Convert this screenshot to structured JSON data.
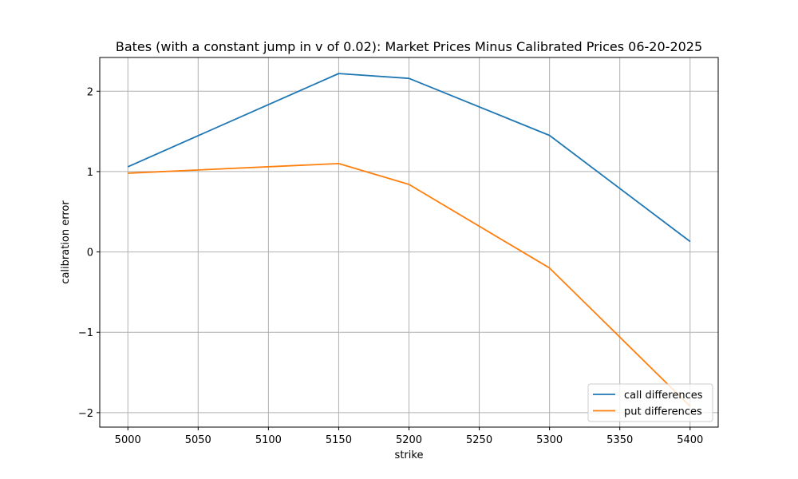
{
  "chart_data": {
    "type": "line",
    "title": "Bates (with a constant jump in v of 0.02): Market Prices Minus Calibrated Prices 06-20-2025",
    "xlabel": "strike",
    "ylabel": "calibration error",
    "x": [
      5000,
      5150,
      5200,
      5300,
      5400
    ],
    "xlim": [
      4980,
      5420
    ],
    "ylim": [
      -2.18,
      2.42
    ],
    "xticks": [
      5000,
      5050,
      5100,
      5150,
      5200,
      5250,
      5300,
      5350,
      5400
    ],
    "yticks": [
      2,
      1,
      0,
      -1,
      -2
    ],
    "ytick_labels": [
      "2",
      "1",
      "0",
      "−1",
      "−2"
    ],
    "grid": true,
    "legend_position": "lower right",
    "series": [
      {
        "name": "call differences",
        "color": "#1f77b4",
        "values": [
          1.06,
          2.22,
          2.16,
          1.45,
          0.13
        ]
      },
      {
        "name": "put differences",
        "color": "#ff7f0e",
        "values": [
          0.98,
          1.1,
          0.84,
          -0.2,
          -1.92
        ]
      }
    ]
  }
}
